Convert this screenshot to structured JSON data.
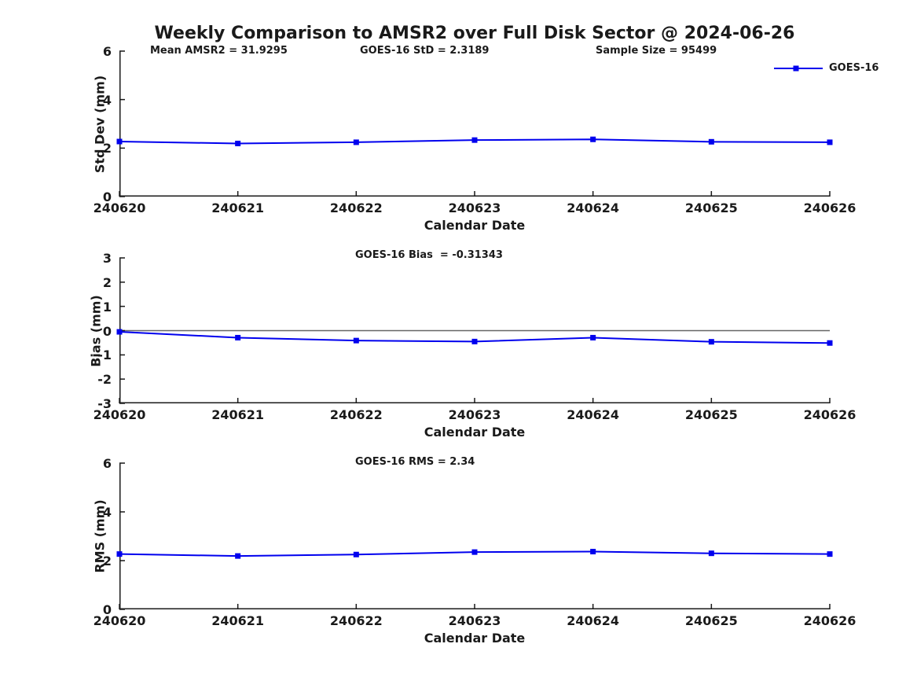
{
  "figure": {
    "title": "Weekly Comparison to AMSR2 over Full Disk Sector @ 2024-06-26",
    "legend_label": "GOES-16",
    "colors": {
      "line": "#0000EE",
      "zero_line": "#666666",
      "axis": "#1a1a1a",
      "text": "#1a1a1a",
      "background": "#ffffff"
    }
  },
  "chart_data": [
    {
      "type": "line",
      "title": "",
      "ylabel": "Std Dev (mm)",
      "xlabel": "Calendar Date",
      "categories": [
        "240620",
        "240621",
        "240622",
        "240623",
        "240624",
        "240625",
        "240626"
      ],
      "series": [
        {
          "name": "GOES-16",
          "marker": "square",
          "values": [
            2.27,
            2.19,
            2.24,
            2.33,
            2.36,
            2.26,
            2.24
          ]
        }
      ],
      "ylim": [
        0,
        6
      ],
      "yticks": [
        0,
        2,
        4,
        6
      ],
      "grid": false,
      "zero_line": false,
      "legend_position": "outside-top-right",
      "annotations": [
        "Mean AMSR2 = 31.9295",
        "GOES-16 StD = 2.3189",
        "Sample Size = 95499"
      ]
    },
    {
      "type": "line",
      "title": "",
      "ylabel": "Bias (mm)",
      "xlabel": "Calendar Date",
      "categories": [
        "240620",
        "240621",
        "240622",
        "240623",
        "240624",
        "240625",
        "240626"
      ],
      "series": [
        {
          "name": "GOES-16",
          "marker": "square",
          "values": [
            -0.05,
            -0.29,
            -0.41,
            -0.45,
            -0.29,
            -0.46,
            -0.51
          ]
        }
      ],
      "ylim": [
        -3,
        3
      ],
      "yticks": [
        -3,
        -2,
        -1,
        0,
        1,
        2,
        3
      ],
      "grid": false,
      "zero_line": true,
      "annotations": [
        "GOES-16 Bias  = -0.31343"
      ]
    },
    {
      "type": "line",
      "title": "",
      "ylabel": "RMS (mm)",
      "xlabel": "Calendar Date",
      "categories": [
        "240620",
        "240621",
        "240622",
        "240623",
        "240624",
        "240625",
        "240626"
      ],
      "series": [
        {
          "name": "GOES-16",
          "marker": "square",
          "values": [
            2.27,
            2.19,
            2.25,
            2.35,
            2.37,
            2.3,
            2.27
          ]
        }
      ],
      "ylim": [
        0,
        6
      ],
      "yticks": [
        0,
        2,
        4,
        6
      ],
      "grid": false,
      "zero_line": false,
      "annotations": [
        "GOES-16 RMS = 2.34"
      ]
    }
  ]
}
